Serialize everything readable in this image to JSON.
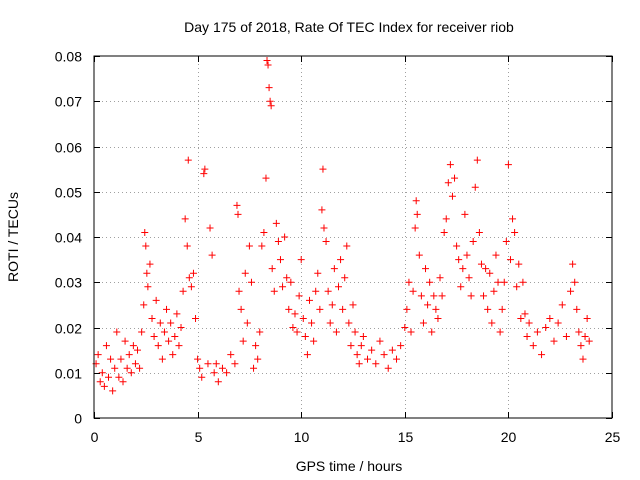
{
  "chart_data": {
    "type": "scatter",
    "title": "Day 175 of 2018, Rate Of TEC Index for receiver riob",
    "xlabel": "GPS time / hours",
    "ylabel": "ROTI / TECUs",
    "xlim": [
      0,
      25
    ],
    "ylim": [
      0,
      0.08
    ],
    "xticks": [
      0,
      5,
      10,
      15,
      20,
      25
    ],
    "xtick_labels": [
      "0",
      "5",
      "10",
      "15",
      "20",
      "25"
    ],
    "yticks": [
      0,
      0.01,
      0.02,
      0.03,
      0.04,
      0.05,
      0.06,
      0.07,
      0.08
    ],
    "ytick_labels": [
      "0",
      "0.01",
      "0.02",
      "0.03",
      "0.04",
      "0.05",
      "0.06",
      "0.07",
      "0.08"
    ],
    "grid": true,
    "marker": "+",
    "color": "#ff0000",
    "series": [
      {
        "name": "ROTI",
        "points": [
          [
            0.1,
            0.012
          ],
          [
            0.2,
            0.014
          ],
          [
            0.3,
            0.008
          ],
          [
            0.4,
            0.01
          ],
          [
            0.5,
            0.007
          ],
          [
            0.6,
            0.016
          ],
          [
            0.7,
            0.009
          ],
          [
            0.8,
            0.013
          ],
          [
            0.9,
            0.006
          ],
          [
            1.0,
            0.011
          ],
          [
            1.1,
            0.019
          ],
          [
            1.2,
            0.009
          ],
          [
            1.3,
            0.013
          ],
          [
            1.4,
            0.008
          ],
          [
            1.5,
            0.017
          ],
          [
            1.6,
            0.011
          ],
          [
            1.7,
            0.014
          ],
          [
            1.8,
            0.01
          ],
          [
            1.9,
            0.016
          ],
          [
            2.0,
            0.012
          ],
          [
            2.1,
            0.015
          ],
          [
            2.2,
            0.011
          ],
          [
            2.3,
            0.019
          ],
          [
            2.4,
            0.025
          ],
          [
            2.45,
            0.041
          ],
          [
            2.5,
            0.038
          ],
          [
            2.55,
            0.032
          ],
          [
            2.6,
            0.029
          ],
          [
            2.7,
            0.034
          ],
          [
            2.8,
            0.022
          ],
          [
            2.9,
            0.018
          ],
          [
            3.0,
            0.026
          ],
          [
            3.1,
            0.016
          ],
          [
            3.2,
            0.021
          ],
          [
            3.3,
            0.013
          ],
          [
            3.4,
            0.019
          ],
          [
            3.5,
            0.024
          ],
          [
            3.6,
            0.017
          ],
          [
            3.7,
            0.021
          ],
          [
            3.8,
            0.014
          ],
          [
            3.9,
            0.018
          ],
          [
            4.0,
            0.023
          ],
          [
            4.1,
            0.016
          ],
          [
            4.2,
            0.02
          ],
          [
            4.3,
            0.028
          ],
          [
            4.4,
            0.044
          ],
          [
            4.5,
            0.038
          ],
          [
            4.55,
            0.057
          ],
          [
            4.6,
            0.031
          ],
          [
            4.7,
            0.029
          ],
          [
            4.8,
            0.032
          ],
          [
            4.9,
            0.022
          ],
          [
            5.0,
            0.013
          ],
          [
            5.1,
            0.011
          ],
          [
            5.2,
            0.009
          ],
          [
            5.3,
            0.054
          ],
          [
            5.35,
            0.055
          ],
          [
            5.5,
            0.012
          ],
          [
            5.6,
            0.042
          ],
          [
            5.7,
            0.036
          ],
          [
            5.8,
            0.01
          ],
          [
            5.9,
            0.012
          ],
          [
            6.0,
            0.008
          ],
          [
            6.2,
            0.011
          ],
          [
            6.4,
            0.01
          ],
          [
            6.6,
            0.014
          ],
          [
            6.8,
            0.012
          ],
          [
            6.9,
            0.047
          ],
          [
            6.95,
            0.045
          ],
          [
            7.0,
            0.028
          ],
          [
            7.1,
            0.024
          ],
          [
            7.2,
            0.017
          ],
          [
            7.3,
            0.032
          ],
          [
            7.4,
            0.021
          ],
          [
            7.5,
            0.038
          ],
          [
            7.6,
            0.03
          ],
          [
            7.7,
            0.011
          ],
          [
            7.8,
            0.016
          ],
          [
            7.9,
            0.013
          ],
          [
            8.0,
            0.019
          ],
          [
            8.1,
            0.038
          ],
          [
            8.2,
            0.041
          ],
          [
            8.3,
            0.053
          ],
          [
            8.35,
            0.079
          ],
          [
            8.4,
            0.078
          ],
          [
            8.45,
            0.073
          ],
          [
            8.5,
            0.07
          ],
          [
            8.55,
            0.069
          ],
          [
            8.6,
            0.033
          ],
          [
            8.7,
            0.028
          ],
          [
            8.8,
            0.043
          ],
          [
            8.9,
            0.039
          ],
          [
            9.0,
            0.035
          ],
          [
            9.1,
            0.029
          ],
          [
            9.2,
            0.04
          ],
          [
            9.3,
            0.031
          ],
          [
            9.4,
            0.024
          ],
          [
            9.5,
            0.03
          ],
          [
            9.6,
            0.02
          ],
          [
            9.7,
            0.023
          ],
          [
            9.8,
            0.019
          ],
          [
            9.9,
            0.027
          ],
          [
            10.0,
            0.035
          ],
          [
            10.1,
            0.022
          ],
          [
            10.2,
            0.018
          ],
          [
            10.3,
            0.014
          ],
          [
            10.4,
            0.026
          ],
          [
            10.5,
            0.021
          ],
          [
            10.6,
            0.017
          ],
          [
            10.7,
            0.028
          ],
          [
            10.8,
            0.032
          ],
          [
            10.9,
            0.024
          ],
          [
            11.0,
            0.046
          ],
          [
            11.05,
            0.055
          ],
          [
            11.1,
            0.042
          ],
          [
            11.2,
            0.039
          ],
          [
            11.3,
            0.028
          ],
          [
            11.4,
            0.021
          ],
          [
            11.5,
            0.025
          ],
          [
            11.6,
            0.033
          ],
          [
            11.7,
            0.019
          ],
          [
            11.8,
            0.029
          ],
          [
            11.9,
            0.035
          ],
          [
            12.0,
            0.024
          ],
          [
            12.1,
            0.031
          ],
          [
            12.2,
            0.038
          ],
          [
            12.3,
            0.021
          ],
          [
            12.4,
            0.016
          ],
          [
            12.5,
            0.025
          ],
          [
            12.6,
            0.019
          ],
          [
            12.7,
            0.014
          ],
          [
            12.8,
            0.012
          ],
          [
            12.9,
            0.016
          ],
          [
            13.0,
            0.018
          ],
          [
            13.2,
            0.013
          ],
          [
            13.4,
            0.015
          ],
          [
            13.6,
            0.012
          ],
          [
            13.8,
            0.017
          ],
          [
            14.0,
            0.014
          ],
          [
            14.2,
            0.011
          ],
          [
            14.4,
            0.015
          ],
          [
            14.6,
            0.013
          ],
          [
            14.8,
            0.016
          ],
          [
            15.0,
            0.02
          ],
          [
            15.1,
            0.024
          ],
          [
            15.2,
            0.03
          ],
          [
            15.3,
            0.019
          ],
          [
            15.4,
            0.028
          ],
          [
            15.5,
            0.042
          ],
          [
            15.55,
            0.048
          ],
          [
            15.6,
            0.045
          ],
          [
            15.7,
            0.036
          ],
          [
            15.8,
            0.027
          ],
          [
            15.9,
            0.021
          ],
          [
            16.0,
            0.033
          ],
          [
            16.1,
            0.025
          ],
          [
            16.2,
            0.03
          ],
          [
            16.3,
            0.019
          ],
          [
            16.4,
            0.027
          ],
          [
            16.5,
            0.024
          ],
          [
            16.6,
            0.022
          ],
          [
            16.7,
            0.031
          ],
          [
            16.8,
            0.027
          ],
          [
            16.9,
            0.041
          ],
          [
            17.0,
            0.044
          ],
          [
            17.1,
            0.052
          ],
          [
            17.2,
            0.056
          ],
          [
            17.3,
            0.049
          ],
          [
            17.4,
            0.053
          ],
          [
            17.5,
            0.038
          ],
          [
            17.6,
            0.035
          ],
          [
            17.7,
            0.029
          ],
          [
            17.8,
            0.033
          ],
          [
            17.9,
            0.045
          ],
          [
            18.0,
            0.036
          ],
          [
            18.1,
            0.031
          ],
          [
            18.2,
            0.027
          ],
          [
            18.3,
            0.039
          ],
          [
            18.4,
            0.051
          ],
          [
            18.5,
            0.057
          ],
          [
            18.6,
            0.041
          ],
          [
            18.7,
            0.034
          ],
          [
            18.8,
            0.027
          ],
          [
            18.9,
            0.033
          ],
          [
            19.0,
            0.024
          ],
          [
            19.1,
            0.032
          ],
          [
            19.2,
            0.021
          ],
          [
            19.3,
            0.028
          ],
          [
            19.4,
            0.036
          ],
          [
            19.5,
            0.03
          ],
          [
            19.6,
            0.019
          ],
          [
            19.7,
            0.024
          ],
          [
            19.8,
            0.03
          ],
          [
            19.9,
            0.039
          ],
          [
            20.0,
            0.056
          ],
          [
            20.1,
            0.035
          ],
          [
            20.2,
            0.044
          ],
          [
            20.3,
            0.041
          ],
          [
            20.4,
            0.029
          ],
          [
            20.5,
            0.034
          ],
          [
            20.6,
            0.022
          ],
          [
            20.7,
            0.03
          ],
          [
            20.8,
            0.023
          ],
          [
            20.9,
            0.018
          ],
          [
            21.0,
            0.021
          ],
          [
            21.2,
            0.016
          ],
          [
            21.4,
            0.019
          ],
          [
            21.6,
            0.014
          ],
          [
            21.8,
            0.02
          ],
          [
            22.0,
            0.022
          ],
          [
            22.2,
            0.017
          ],
          [
            22.4,
            0.021
          ],
          [
            22.6,
            0.025
          ],
          [
            22.8,
            0.018
          ],
          [
            23.0,
            0.028
          ],
          [
            23.1,
            0.034
          ],
          [
            23.2,
            0.03
          ],
          [
            23.3,
            0.024
          ],
          [
            23.4,
            0.019
          ],
          [
            23.5,
            0.016
          ],
          [
            23.6,
            0.013
          ],
          [
            23.7,
            0.018
          ],
          [
            23.8,
            0.022
          ],
          [
            23.9,
            0.017
          ]
        ]
      }
    ]
  }
}
